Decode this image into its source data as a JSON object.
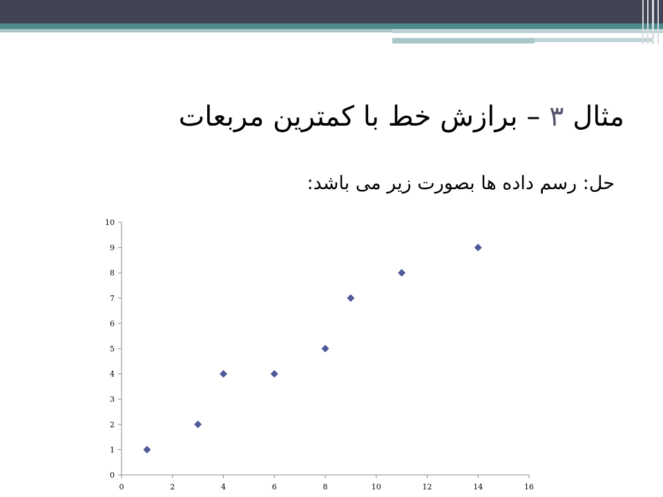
{
  "slide": {
    "title_text": "مثال ۳ – برازش خط با کمترین مربعات",
    "subtitle": "حل: رسم داده ها بصورت زیر می باشد:"
  },
  "colors": {
    "header_dark": "#434356",
    "header_teal": "#4f8a8b",
    "header_light": "#a9c7c9",
    "marker": "#4f5a9a"
  },
  "chart_data": {
    "type": "scatter",
    "x": [
      1,
      3,
      4,
      6,
      8,
      9,
      11,
      14
    ],
    "y": [
      1,
      2,
      4,
      4,
      5,
      7,
      8,
      9
    ],
    "xlim": [
      0,
      16
    ],
    "ylim": [
      0,
      10
    ],
    "xticks": [
      "0",
      "2",
      "4",
      "6",
      "8",
      "10",
      "12",
      "14",
      "16"
    ],
    "yticks": [
      "0",
      "1",
      "2",
      "3",
      "4",
      "5",
      "6",
      "7",
      "8",
      "9",
      "10"
    ],
    "marker": "diamond",
    "grid": false,
    "legend": "none"
  }
}
